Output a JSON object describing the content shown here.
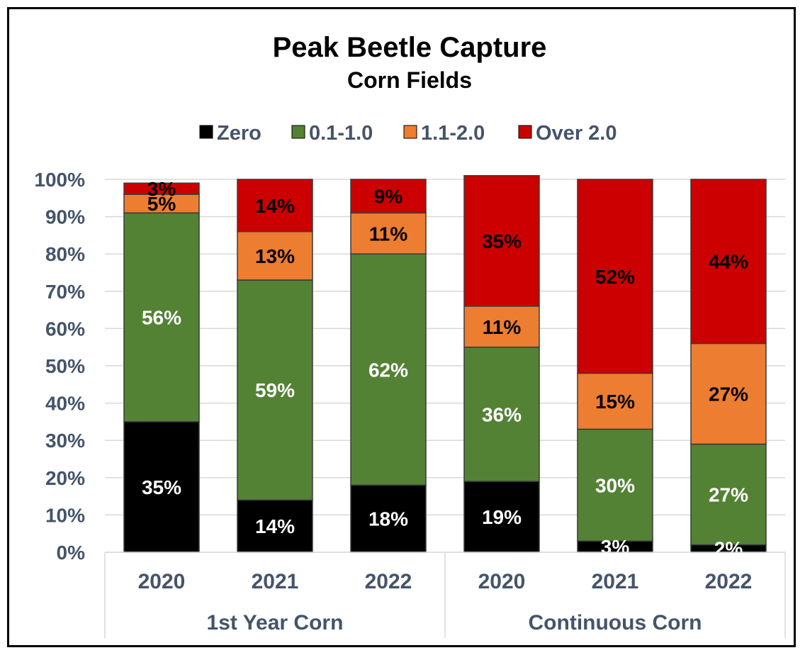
{
  "chart_data": {
    "type": "bar",
    "stacked": true,
    "title": "Peak Beetle Capture",
    "subtitle": "Corn Fields",
    "xlabel": "",
    "ylabel": "",
    "ylim": [
      0,
      100
    ],
    "yticks": [
      "0%",
      "10%",
      "20%",
      "30%",
      "40%",
      "50%",
      "60%",
      "70%",
      "80%",
      "90%",
      "100%"
    ],
    "grid": true,
    "legend_position": "top",
    "categories": [
      "2020",
      "2021",
      "2022",
      "2020",
      "2021",
      "2022"
    ],
    "groups": [
      {
        "label": "1st Year Corn",
        "count": 3
      },
      {
        "label": "Continuous Corn",
        "count": 3
      }
    ],
    "series": [
      {
        "name": "Zero",
        "color": "#000000",
        "label_color": "#ffffff",
        "values": [
          35,
          14,
          18,
          19,
          3,
          2
        ],
        "labels": [
          "35%",
          "14%",
          "18%",
          "19%",
          "3%",
          "2%"
        ]
      },
      {
        "name": "0.1-1.0",
        "color": "#548235",
        "label_color": "#ffffff",
        "values": [
          56,
          59,
          62,
          36,
          30,
          27
        ],
        "labels": [
          "56%",
          "59%",
          "62%",
          "36%",
          "30%",
          "27%"
        ]
      },
      {
        "name": "1.1-2.0",
        "color": "#ed7d31",
        "label_color": "#000000",
        "values": [
          5,
          13,
          11,
          11,
          15,
          27
        ],
        "labels": [
          "5%",
          "13%",
          "11%",
          "11%",
          "15%",
          "27%"
        ]
      },
      {
        "name": "Over 2.0",
        "color": "#cc0000",
        "label_color": "#000000",
        "values": [
          3,
          14,
          9,
          35,
          52,
          44
        ],
        "labels": [
          "3%",
          "14%",
          "9%",
          "35%",
          "52%",
          "44%"
        ]
      }
    ]
  }
}
